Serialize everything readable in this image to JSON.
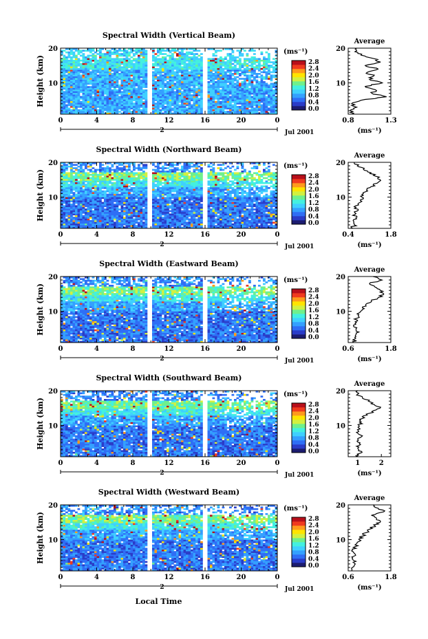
{
  "figure": {
    "xlabel_bottom": "Local Time",
    "date_label": "Jul 2001",
    "day_label": "2",
    "colorbar_unit": "(ms⁻¹)",
    "colorbar_ticks": [
      "0.0",
      "0.4",
      "0.8",
      "1.2",
      "1.6",
      "2.0",
      "2.4",
      "2.8"
    ],
    "colors": [
      "#1c1c70",
      "#2a3cc8",
      "#2f6ef5",
      "#34a0ff",
      "#3fd0ff",
      "#43f0e0",
      "#6ff08c",
      "#d2f040",
      "#ffe400",
      "#ff9a1c",
      "#f03a1e",
      "#b80f1a"
    ]
  },
  "chart_data": [
    {
      "type": "heatmap",
      "title": "Spectral Width (Vertical Beam)",
      "xlabel": "",
      "ylabel": "Height (km)",
      "x_ticks": [
        "0",
        "4",
        "8",
        "12",
        "16",
        "20",
        "0"
      ],
      "xlim": [
        0,
        24
      ],
      "y_ticks": [
        "10",
        "20"
      ],
      "ylim": [
        1,
        20
      ],
      "colorbar": {
        "label": "(ms⁻¹)",
        "range": [
          0.0,
          2.8
        ]
      },
      "data_gaps_hours": [
        [
          9.6,
          10.2
        ],
        [
          15.8,
          16.2
        ]
      ],
      "profile": {
        "title": "Average",
        "xlabel": "(ms⁻¹)",
        "xticks": [
          "0.8",
          "1.3"
        ],
        "xlim": [
          0.8,
          1.3
        ],
        "heights": [
          1,
          2,
          3,
          4,
          5,
          6,
          7,
          8,
          9,
          10,
          11,
          12,
          13,
          14,
          15,
          16,
          17,
          18,
          19,
          20
        ],
        "values": [
          0.85,
          0.82,
          0.9,
          0.84,
          0.95,
          1.25,
          1.08,
          1.12,
          1.0,
          1.2,
          1.05,
          1.1,
          1.02,
          1.15,
          1.0,
          1.18,
          1.1,
          0.95,
          0.88,
          0.9
        ]
      }
    },
    {
      "type": "heatmap",
      "title": "Spectral Width (Northward Beam)",
      "xlabel": "",
      "ylabel": "Height (km)",
      "x_ticks": [
        "0",
        "4",
        "8",
        "12",
        "16",
        "20",
        "0"
      ],
      "xlim": [
        0,
        24
      ],
      "y_ticks": [
        "10",
        "20"
      ],
      "ylim": [
        1,
        20
      ],
      "colorbar": {
        "label": "(ms⁻¹)",
        "range": [
          0.0,
          2.8
        ]
      },
      "data_gaps_hours": [
        [
          9.6,
          10.2
        ],
        [
          15.8,
          16.2
        ]
      ],
      "profile": {
        "title": "Average",
        "xlabel": "(ms⁻¹)",
        "xticks": [
          "0.4",
          "1.8"
        ],
        "xlim": [
          0.4,
          1.8
        ],
        "heights": [
          1,
          2,
          3,
          4,
          5,
          6,
          7,
          8,
          9,
          10,
          11,
          12,
          13,
          14,
          15,
          16,
          17,
          18,
          19,
          20
        ],
        "values": [
          0.55,
          0.6,
          0.58,
          0.65,
          0.62,
          0.7,
          0.66,
          0.72,
          0.8,
          0.85,
          0.9,
          1.0,
          1.15,
          1.35,
          1.45,
          1.3,
          1.15,
          0.9,
          0.7,
          0.6
        ]
      }
    },
    {
      "type": "heatmap",
      "title": "Spectral Width (Eastward Beam)",
      "xlabel": "",
      "ylabel": "Height (km)",
      "x_ticks": [
        "0",
        "4",
        "8",
        "12",
        "16",
        "20",
        "0"
      ],
      "xlim": [
        0,
        24
      ],
      "y_ticks": [
        "10",
        "20"
      ],
      "ylim": [
        1,
        20
      ],
      "colorbar": {
        "label": "(ms⁻¹)",
        "range": [
          0.0,
          2.8
        ]
      },
      "data_gaps_hours": [
        [
          9.6,
          10.2
        ],
        [
          15.8,
          16.2
        ]
      ],
      "profile": {
        "title": "Average",
        "xlabel": "(ms⁻¹)",
        "xticks": [
          "0.6",
          "1.8"
        ],
        "xlim": [
          0.6,
          1.8
        ],
        "heights": [
          1,
          2,
          3,
          4,
          5,
          6,
          7,
          8,
          9,
          10,
          11,
          12,
          13,
          14,
          15,
          16,
          17,
          18,
          19,
          20
        ],
        "values": [
          0.75,
          0.78,
          0.8,
          0.9,
          0.82,
          0.75,
          0.8,
          0.85,
          0.9,
          0.95,
          1.0,
          1.1,
          1.25,
          1.45,
          1.6,
          1.5,
          1.35,
          1.2,
          1.55,
          1.3
        ]
      }
    },
    {
      "type": "heatmap",
      "title": "Spectral Width (Southward Beam)",
      "xlabel": "",
      "ylabel": "Height (km)",
      "x_ticks": [
        "0",
        "4",
        "8",
        "12",
        "16",
        "20",
        "0"
      ],
      "xlim": [
        0,
        24
      ],
      "y_ticks": [
        "10",
        "20"
      ],
      "ylim": [
        1,
        20
      ],
      "colorbar": {
        "label": "(ms⁻¹)",
        "range": [
          0.0,
          2.8
        ]
      },
      "data_gaps_hours": [
        [
          9.6,
          10.2
        ],
        [
          15.8,
          16.2
        ]
      ],
      "profile": {
        "title": "Average",
        "xlabel": "(ms⁻¹)",
        "xticks": [
          "1",
          "2"
        ],
        "xlim": [
          0.6,
          2.4
        ],
        "heights": [
          1,
          2,
          3,
          4,
          5,
          6,
          7,
          8,
          9,
          10,
          11,
          12,
          13,
          14,
          15,
          16,
          17,
          18,
          19,
          20
        ],
        "values": [
          1.0,
          1.1,
          1.05,
          0.95,
          1.1,
          1.0,
          1.2,
          0.95,
          1.1,
          1.05,
          1.15,
          1.2,
          1.4,
          1.6,
          1.95,
          1.7,
          1.45,
          1.2,
          1.0,
          1.0
        ]
      }
    },
    {
      "type": "heatmap",
      "title": "Spectral Width (Westward Beam)",
      "xlabel": "Local Time",
      "ylabel": "Height (km)",
      "x_ticks": [
        "0",
        "4",
        "8",
        "12",
        "16",
        "20",
        "0"
      ],
      "xlim": [
        0,
        24
      ],
      "y_ticks": [
        "10",
        "20"
      ],
      "ylim": [
        1,
        20
      ],
      "colorbar": {
        "label": "(ms⁻¹)",
        "range": [
          0.0,
          2.8
        ]
      },
      "data_gaps_hours": [
        [
          9.6,
          10.2
        ],
        [
          15.8,
          16.2
        ]
      ],
      "profile": {
        "title": "Average",
        "xlabel": "(ms⁻¹)",
        "xticks": [
          "0.6",
          "1.8"
        ],
        "xlim": [
          0.6,
          1.8
        ],
        "heights": [
          1,
          2,
          3,
          4,
          5,
          6,
          7,
          8,
          9,
          10,
          11,
          12,
          13,
          14,
          15,
          16,
          17,
          18,
          19,
          20
        ],
        "values": [
          0.7,
          0.72,
          0.8,
          0.75,
          0.7,
          0.78,
          0.72,
          0.8,
          0.85,
          0.9,
          1.0,
          1.1,
          1.2,
          1.35,
          1.5,
          1.4,
          1.25,
          1.6,
          1.45,
          1.3
        ]
      }
    }
  ]
}
